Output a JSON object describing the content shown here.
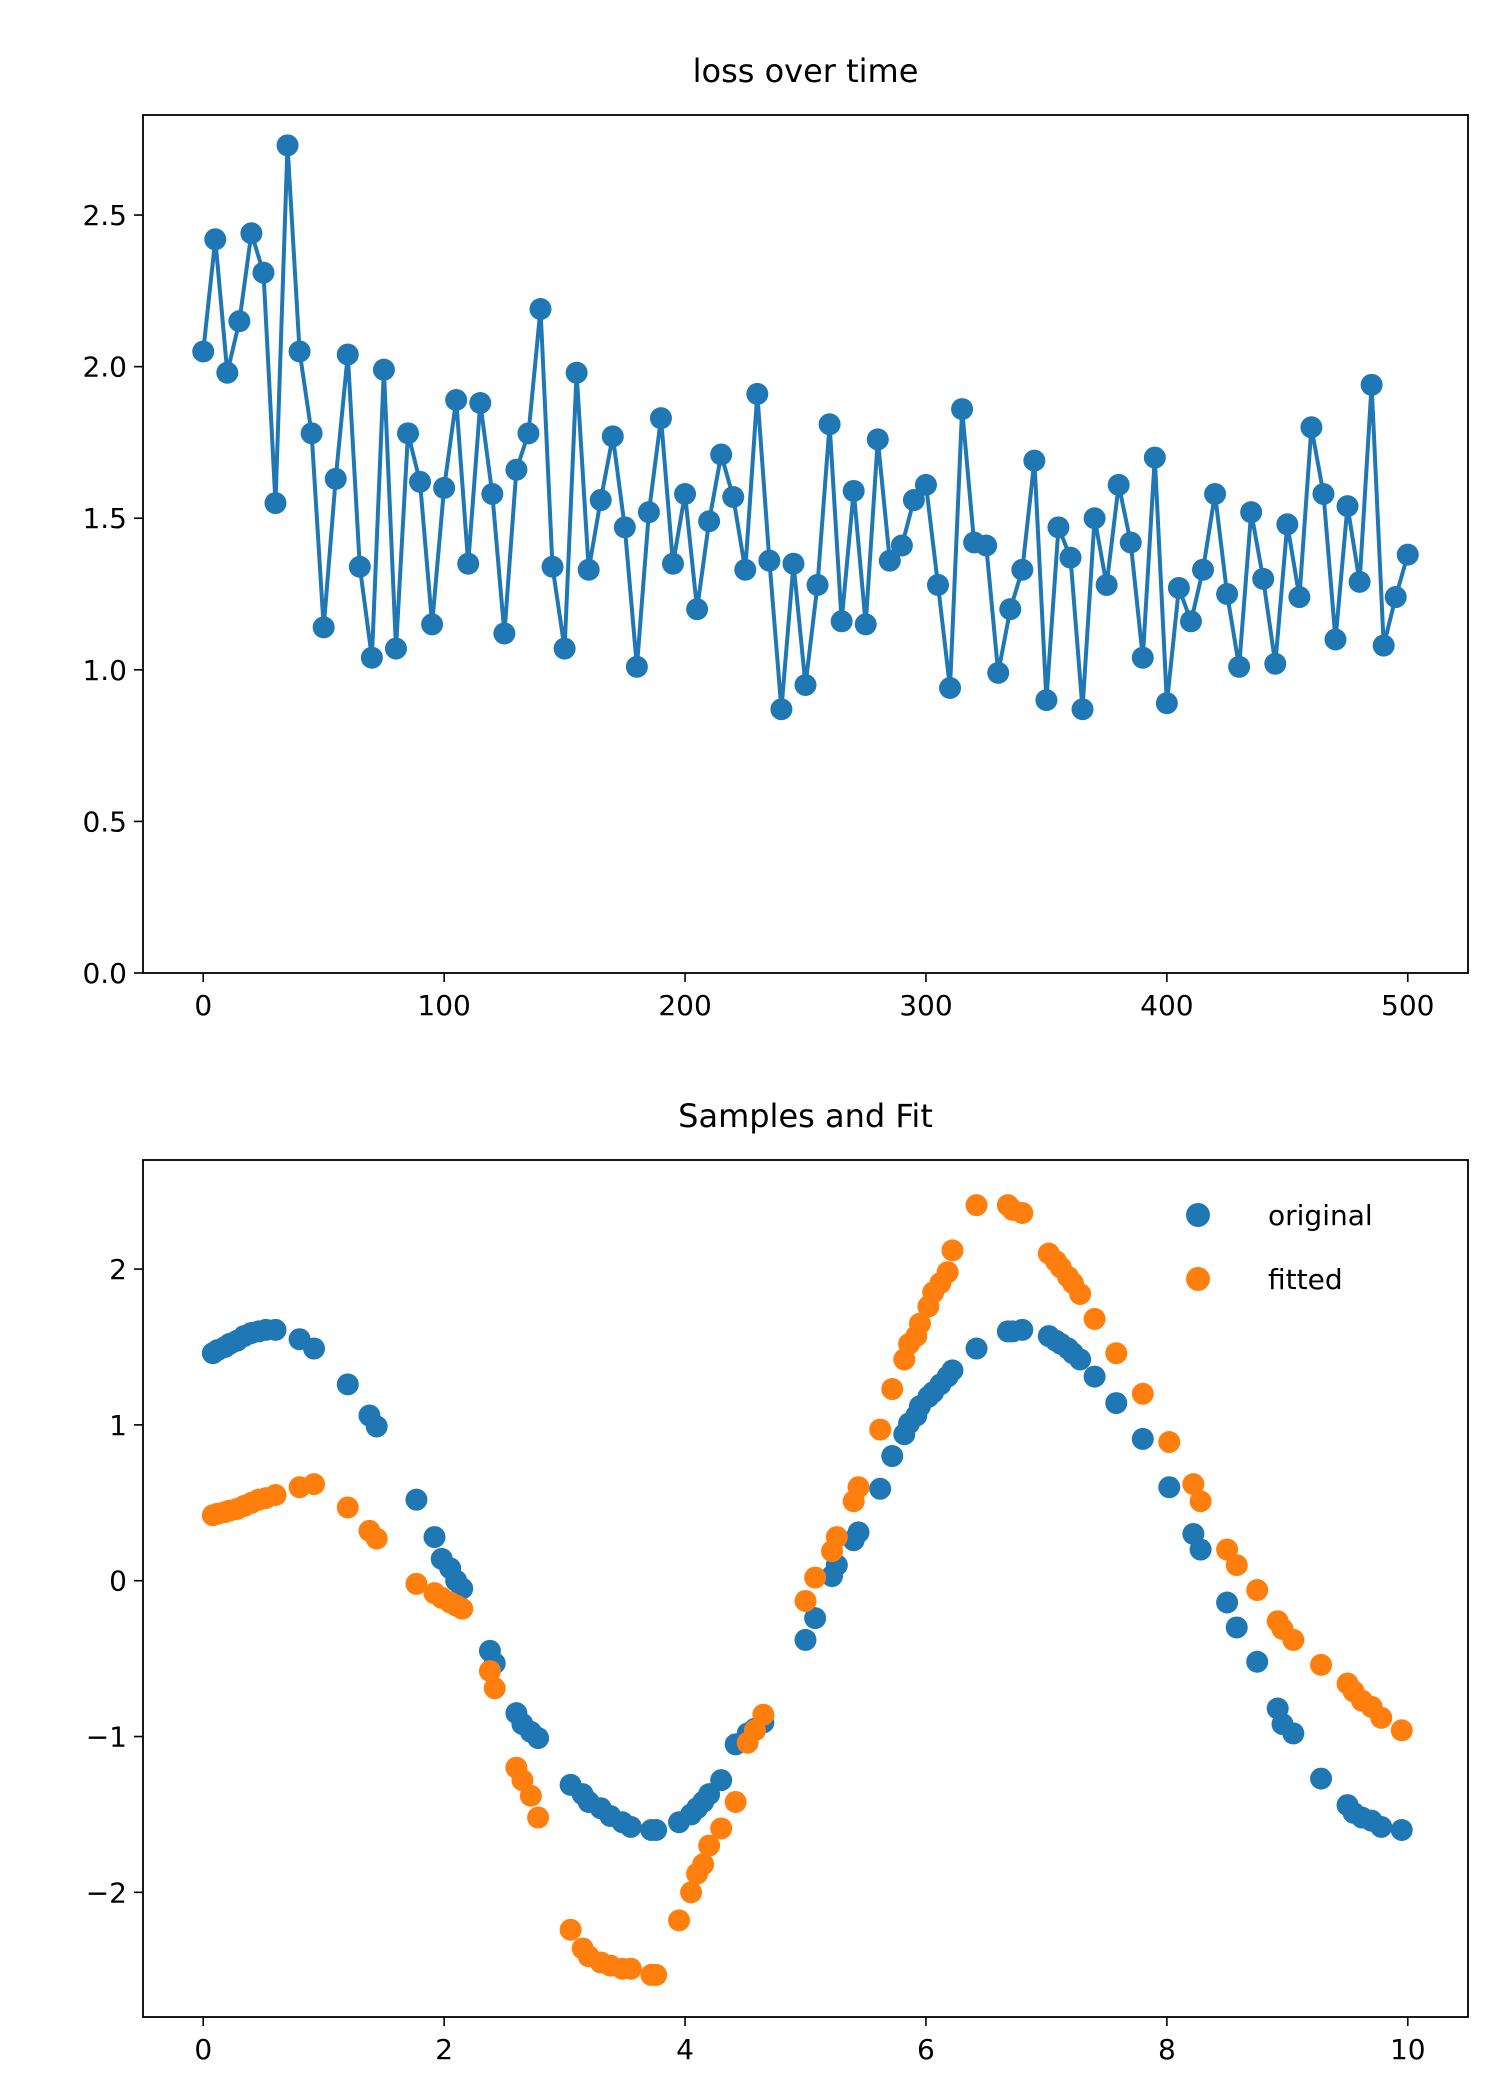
{
  "chart_data": [
    {
      "type": "line",
      "title": "loss over time",
      "xlabel": "",
      "ylabel": "",
      "xlim": [
        -25,
        525
      ],
      "ylim": [
        0.0,
        2.83
      ],
      "xticks": [
        0,
        100,
        200,
        300,
        400,
        500
      ],
      "xtick_labels": [
        "0",
        "100",
        "200",
        "300",
        "400",
        "500"
      ],
      "yticks": [
        0.0,
        0.5,
        1.0,
        1.5,
        2.0,
        2.5
      ],
      "ytick_labels": [
        "0.0",
        "0.5",
        "1.0",
        "1.5",
        "2.0",
        "2.5"
      ],
      "grid": false,
      "marker": "circle",
      "color": "#1f77b4",
      "series": [
        {
          "x": [
            0,
            5,
            10,
            15,
            20,
            25,
            30,
            35,
            40,
            45,
            50,
            55,
            60,
            65,
            70,
            75,
            80,
            85,
            90,
            95,
            100,
            105,
            110,
            115,
            120,
            125,
            130,
            135,
            140,
            145,
            150,
            155,
            160,
            165,
            170,
            175,
            180,
            185,
            190,
            195,
            200,
            205,
            210,
            215,
            220,
            225,
            230,
            235,
            240,
            245,
            250,
            255,
            260,
            265,
            270,
            275,
            280,
            285,
            290,
            295,
            300,
            305,
            310,
            315,
            320,
            325,
            330,
            335,
            340,
            345,
            350,
            355,
            360,
            365,
            370,
            375,
            380,
            385,
            390,
            395,
            400,
            405,
            410,
            415,
            420,
            425,
            430,
            435,
            440,
            445,
            450,
            455,
            460,
            465,
            470,
            475,
            480,
            485,
            490,
            495,
            500
          ],
          "y": [
            2.05,
            2.42,
            1.98,
            2.15,
            2.44,
            2.31,
            1.55,
            2.73,
            2.05,
            1.78,
            1.14,
            1.63,
            2.04,
            1.34,
            1.04,
            1.99,
            1.07,
            1.78,
            1.62,
            1.15,
            1.6,
            1.89,
            1.35,
            1.88,
            1.58,
            1.12,
            1.66,
            1.78,
            2.19,
            1.34,
            1.07,
            1.98,
            1.33,
            1.56,
            1.77,
            1.47,
            1.01,
            1.52,
            1.83,
            1.35,
            1.58,
            1.2,
            1.49,
            1.71,
            1.57,
            1.33,
            1.91,
            1.36,
            0.87,
            1.35,
            0.95,
            1.28,
            1.81,
            1.16,
            1.59,
            1.15,
            1.76,
            1.36,
            1.41,
            1.56,
            1.61,
            1.28,
            0.94,
            1.86,
            1.42,
            1.41,
            0.99,
            1.2,
            1.33,
            1.69,
            0.9,
            1.47,
            1.37,
            0.87,
            1.5,
            1.28,
            1.61,
            1.42,
            1.04,
            1.7,
            0.89,
            1.27,
            1.16,
            1.33,
            1.58,
            1.25,
            1.01,
            1.52,
            1.3,
            1.02,
            1.48,
            1.24,
            1.8,
            1.58,
            1.1,
            1.54,
            1.29,
            1.94,
            1.08,
            1.24,
            1.38
          ]
        }
      ]
    },
    {
      "type": "scatter",
      "title": "Samples and Fit",
      "xlabel": "",
      "ylabel": "",
      "xlim": [
        -0.5,
        10.5
      ],
      "ylim": [
        -2.8,
        2.7
      ],
      "xticks": [
        0,
        2,
        4,
        6,
        8,
        10
      ],
      "xtick_labels": [
        "0",
        "2",
        "4",
        "6",
        "8",
        "10"
      ],
      "yticks": [
        -2,
        -1,
        0,
        1,
        2
      ],
      "ytick_labels": [
        "−2",
        "−1",
        "0",
        "1",
        "2"
      ],
      "grid": false,
      "legend_position": "top-right",
      "x": [
        0.08,
        0.12,
        0.18,
        0.22,
        0.28,
        0.34,
        0.4,
        0.46,
        0.52,
        0.6,
        0.8,
        0.92,
        1.2,
        1.38,
        1.44,
        1.77,
        1.92,
        1.98,
        2.05,
        2.1,
        2.15,
        2.38,
        2.42,
        2.6,
        2.65,
        2.72,
        2.78,
        3.05,
        3.15,
        3.2,
        3.3,
        3.38,
        3.48,
        3.55,
        3.72,
        3.76,
        3.95,
        4.05,
        4.1,
        4.15,
        4.2,
        4.3,
        4.42,
        4.52,
        4.58,
        4.65,
        5.0,
        5.08,
        5.22,
        5.26,
        5.4,
        5.44,
        5.62,
        5.72,
        5.82,
        5.86,
        5.92,
        5.95,
        6.02,
        6.06,
        6.12,
        6.18,
        6.22,
        6.42,
        6.68,
        6.72,
        6.8,
        7.02,
        7.08,
        7.12,
        7.18,
        7.22,
        7.28,
        7.4,
        7.58,
        7.8,
        8.02,
        8.22,
        8.28,
        8.5,
        8.58,
        8.75,
        8.92,
        8.96,
        9.05,
        9.28,
        9.5,
        9.55,
        9.62,
        9.7,
        9.78,
        9.95
      ],
      "series": [
        {
          "name": "original",
          "color": "#1f77b4",
          "y": [
            1.46,
            1.48,
            1.5,
            1.52,
            1.54,
            1.57,
            1.59,
            1.6,
            1.61,
            1.61,
            1.55,
            1.49,
            1.26,
            1.06,
            0.99,
            0.52,
            0.28,
            0.14,
            0.08,
            0.0,
            -0.05,
            -0.45,
            -0.53,
            -0.85,
            -0.92,
            -0.97,
            -1.01,
            -1.31,
            -1.37,
            -1.42,
            -1.46,
            -1.51,
            -1.55,
            -1.58,
            -1.6,
            -1.6,
            -1.55,
            -1.5,
            -1.46,
            -1.42,
            -1.37,
            -1.28,
            -1.05,
            -0.98,
            -0.95,
            -0.91,
            -0.38,
            -0.24,
            0.03,
            0.1,
            0.26,
            0.31,
            0.59,
            0.8,
            0.94,
            1.01,
            1.06,
            1.12,
            1.18,
            1.21,
            1.26,
            1.31,
            1.35,
            1.49,
            1.6,
            1.6,
            1.61,
            1.57,
            1.54,
            1.52,
            1.49,
            1.46,
            1.42,
            1.31,
            1.14,
            0.91,
            0.6,
            0.3,
            0.2,
            -0.14,
            -0.3,
            -0.52,
            -0.82,
            -0.92,
            -0.98,
            -1.27,
            -1.44,
            -1.49,
            -1.52,
            -1.54,
            -1.58,
            -1.6
          ]
        },
        {
          "name": "fitted",
          "color": "#ff7f0e",
          "y": [
            0.42,
            0.43,
            0.44,
            0.45,
            0.46,
            0.48,
            0.5,
            0.52,
            0.53,
            0.55,
            0.6,
            0.62,
            0.47,
            0.32,
            0.27,
            -0.02,
            -0.08,
            -0.11,
            -0.14,
            -0.16,
            -0.18,
            -0.58,
            -0.69,
            -1.2,
            -1.28,
            -1.38,
            -1.52,
            -2.24,
            -2.36,
            -2.41,
            -2.45,
            -2.47,
            -2.49,
            -2.49,
            -2.53,
            -2.53,
            -2.18,
            -2.0,
            -1.88,
            -1.82,
            -1.7,
            -1.59,
            -1.42,
            -1.04,
            -0.96,
            -0.86,
            -0.13,
            0.02,
            0.19,
            0.28,
            0.51,
            0.6,
            0.97,
            1.23,
            1.42,
            1.52,
            1.57,
            1.65,
            1.76,
            1.85,
            1.91,
            1.98,
            2.12,
            2.41,
            2.41,
            2.38,
            2.36,
            2.1,
            2.05,
            2.01,
            1.95,
            1.91,
            1.84,
            1.68,
            1.46,
            1.2,
            0.89,
            0.62,
            0.51,
            0.2,
            0.1,
            -0.06,
            -0.26,
            -0.31,
            -0.38,
            -0.54,
            -0.66,
            -0.71,
            -0.77,
            -0.81,
            -0.88,
            -0.96
          ]
        }
      ]
    }
  ]
}
